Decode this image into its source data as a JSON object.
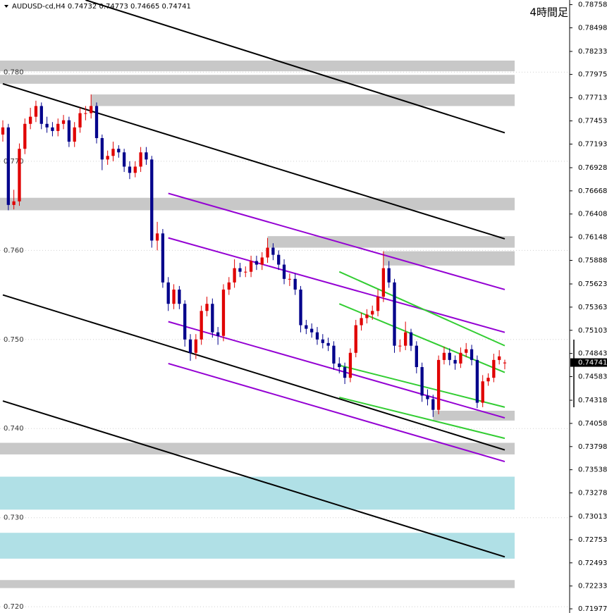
{
  "chart_data": {
    "type": "candlestick",
    "title": "AUDUSD-cd,H4  0.74732 0.74773 0.74665 0.74741",
    "annotation": "4時間足",
    "up_color": "#e00000",
    "down_color": "#00008b",
    "open": [
      0.773,
      0.7738,
      0.7651,
      0.7655,
      0.7714,
      0.7742,
      0.775,
      0.7762,
      0.7742,
      0.7738,
      0.7734,
      0.7742,
      0.7746,
      0.7722,
      0.7738,
      0.7754,
      0.7754,
      0.7762,
      0.7726,
      0.7702,
      0.7706,
      0.7714,
      0.771,
      0.7694,
      0.7687,
      0.7694,
      0.771,
      0.7702,
      0.7611,
      0.7619,
      0.7564,
      0.754,
      0.7556,
      0.754,
      0.75,
      0.7485,
      0.75,
      0.7532,
      0.754,
      0.7508,
      0.7504,
      0.7556,
      0.7564,
      0.758,
      0.7576,
      0.7576,
      0.7588,
      0.7584,
      0.7592,
      0.7603,
      0.7595,
      0.7584,
      0.7568,
      0.7568,
      0.7556,
      0.7516,
      0.7512,
      0.7508,
      0.75,
      0.7496,
      0.7493,
      0.7473,
      0.7469,
      0.7457,
      0.7485,
      0.7516,
      0.7524,
      0.7528,
      0.7532,
      0.7548,
      0.758,
      0.7564,
      0.7493,
      0.7493,
      0.7508,
      0.7493,
      0.7469,
      0.7437,
      0.7433,
      0.7421,
      0.7477,
      0.7485,
      0.7477,
      0.7473,
      0.7485,
      0.7489,
      0.7477,
      0.7429,
      0.7453,
      0.7457,
      0.7477,
      0.74732
    ],
    "high": [
      0.7746,
      0.7742,
      0.7668,
      0.772,
      0.7748,
      0.776,
      0.7768,
      0.7766,
      0.775,
      0.7744,
      0.7748,
      0.7752,
      0.775,
      0.7744,
      0.776,
      0.7762,
      0.7775,
      0.7766,
      0.773,
      0.7712,
      0.7722,
      0.7718,
      0.7714,
      0.77,
      0.77,
      0.7716,
      0.7716,
      0.7706,
      0.7632,
      0.7624,
      0.757,
      0.7562,
      0.756,
      0.7544,
      0.7506,
      0.7506,
      0.7538,
      0.7548,
      0.7546,
      0.7514,
      0.7562,
      0.757,
      0.759,
      0.7586,
      0.7582,
      0.7594,
      0.7594,
      0.7598,
      0.7614,
      0.7608,
      0.76,
      0.759,
      0.7574,
      0.7574,
      0.756,
      0.7522,
      0.7518,
      0.7514,
      0.7506,
      0.7502,
      0.7498,
      0.748,
      0.7474,
      0.749,
      0.7522,
      0.753,
      0.7534,
      0.7538,
      0.7556,
      0.7599,
      0.7588,
      0.7568,
      0.75,
      0.752,
      0.7512,
      0.7498,
      0.7474,
      0.7444,
      0.7438,
      0.7482,
      0.7492,
      0.749,
      0.7482,
      0.7491,
      0.7496,
      0.7494,
      0.7482,
      0.746,
      0.7462,
      0.7484,
      0.7488,
      0.74773
    ],
    "low": [
      0.7722,
      0.7645,
      0.7646,
      0.765,
      0.7708,
      0.7736,
      0.7744,
      0.7736,
      0.7732,
      0.7728,
      0.7728,
      0.7736,
      0.7716,
      0.7716,
      0.7732,
      0.7746,
      0.7748,
      0.772,
      0.769,
      0.7696,
      0.77,
      0.7704,
      0.7688,
      0.768,
      0.7682,
      0.7688,
      0.7696,
      0.7603,
      0.76,
      0.7558,
      0.7532,
      0.7534,
      0.7534,
      0.7492,
      0.7476,
      0.7478,
      0.7494,
      0.7526,
      0.7502,
      0.7494,
      0.7498,
      0.755,
      0.7558,
      0.757,
      0.757,
      0.757,
      0.7578,
      0.7578,
      0.7586,
      0.7589,
      0.7578,
      0.7562,
      0.756,
      0.755,
      0.7508,
      0.7506,
      0.7502,
      0.7494,
      0.749,
      0.7487,
      0.7466,
      0.7462,
      0.745,
      0.7452,
      0.748,
      0.751,
      0.7518,
      0.7522,
      0.7526,
      0.7542,
      0.7558,
      0.7485,
      0.7486,
      0.7488,
      0.7487,
      0.7462,
      0.743,
      0.7426,
      0.7413,
      0.7416,
      0.7472,
      0.7471,
      0.7466,
      0.7468,
      0.748,
      0.7471,
      0.7423,
      0.7424,
      0.7448,
      0.7452,
      0.7472,
      0.74665
    ],
    "close": [
      0.7738,
      0.7651,
      0.7655,
      0.7714,
      0.7742,
      0.775,
      0.7762,
      0.7742,
      0.7738,
      0.7734,
      0.7742,
      0.7746,
      0.7722,
      0.7738,
      0.7754,
      0.7754,
      0.7762,
      0.7726,
      0.7702,
      0.7706,
      0.7714,
      0.771,
      0.7694,
      0.7687,
      0.7694,
      0.771,
      0.7702,
      0.7611,
      0.7619,
      0.7564,
      0.754,
      0.7556,
      0.754,
      0.75,
      0.7485,
      0.75,
      0.7532,
      0.754,
      0.7508,
      0.7504,
      0.7556,
      0.7564,
      0.758,
      0.7576,
      0.7576,
      0.7588,
      0.7584,
      0.7592,
      0.7603,
      0.7595,
      0.7584,
      0.7568,
      0.7568,
      0.7556,
      0.7516,
      0.7512,
      0.7508,
      0.75,
      0.7496,
      0.7493,
      0.7473,
      0.7469,
      0.7457,
      0.7485,
      0.7516,
      0.7524,
      0.7528,
      0.7532,
      0.7548,
      0.758,
      0.7564,
      0.7493,
      0.7493,
      0.7508,
      0.7493,
      0.7469,
      0.7437,
      0.7433,
      0.7421,
      0.7477,
      0.7485,
      0.7477,
      0.7473,
      0.7485,
      0.7489,
      0.7477,
      0.7429,
      0.7453,
      0.7457,
      0.7477,
      0.7481,
      0.74741
    ],
    "ylim": [
      0.7193,
      0.7881
    ],
    "yticks": [
      0.78758,
      0.78498,
      0.78233,
      0.77975,
      0.77713,
      0.77453,
      0.77193,
      0.76928,
      0.76668,
      0.76408,
      0.76148,
      0.75888,
      0.75623,
      0.75363,
      0.75103,
      0.74843,
      0.74583,
      0.74318,
      0.74058,
      0.73798,
      0.73538,
      0.73278,
      0.73013,
      0.72753,
      0.72493,
      0.72233,
      0.71977
    ],
    "level_ticks": [
      {
        "value": 0.78,
        "label": "0.780"
      },
      {
        "value": 0.77,
        "label": "0.770"
      },
      {
        "value": 0.76,
        "label": "0.760"
      },
      {
        "value": 0.75,
        "label": "0.750"
      },
      {
        "value": 0.74,
        "label": "0.740"
      },
      {
        "value": 0.73,
        "label": "0.730"
      },
      {
        "value": 0.72,
        "label": "0.720"
      }
    ],
    "last_price": 0.74741,
    "zones": [
      {
        "from": 0.7801,
        "to": 0.7813,
        "start": 0,
        "color": "#c8c8c8"
      },
      {
        "from": 0.7787,
        "to": 0.7797,
        "start": 0,
        "color": "#c8c8c8"
      },
      {
        "from": 0.7762,
        "to": 0.7775,
        "start": 16,
        "color": "#c8c8c8"
      },
      {
        "from": 0.7645,
        "to": 0.7659,
        "start": 0,
        "color": "#c8c8c8"
      },
      {
        "from": 0.7603,
        "to": 0.7616,
        "start": 48,
        "color": "#c8c8c8"
      },
      {
        "from": 0.7583,
        "to": 0.7599,
        "start": 69,
        "color": "#c8c8c8"
      },
      {
        "from": 0.7409,
        "to": 0.742,
        "start": 78,
        "color": "#c8c8c8"
      },
      {
        "from": 0.7371,
        "to": 0.7384,
        "start": 0,
        "color": "#c8c8c8"
      },
      {
        "from": 0.7309,
        "to": 0.7346,
        "start": 0,
        "color": "#b0e0e6"
      },
      {
        "from": 0.7254,
        "to": 0.7283,
        "start": 0,
        "color": "#b0e0e6"
      },
      {
        "from": 0.7221,
        "to": 0.723,
        "start": 0,
        "color": "#c8c8c8"
      }
    ],
    "trendlines": [
      {
        "color": "#000000",
        "points": [
          [
            15,
            0.7881
          ],
          [
            91,
            0.7732
          ]
        ]
      },
      {
        "color": "#000000",
        "points": [
          [
            0,
            0.7787
          ],
          [
            91,
            0.7613
          ]
        ]
      },
      {
        "color": "#000000",
        "points": [
          [
            0,
            0.755
          ],
          [
            91,
            0.7376
          ]
        ]
      },
      {
        "color": "#000000",
        "points": [
          [
            0,
            0.7431
          ],
          [
            91,
            0.7256
          ]
        ]
      },
      {
        "color": "#9400d3",
        "points": [
          [
            30,
            0.7664
          ],
          [
            91,
            0.7556
          ]
        ]
      },
      {
        "color": "#9400d3",
        "points": [
          [
            30,
            0.7614
          ],
          [
            91,
            0.7508
          ]
        ]
      },
      {
        "color": "#9400d3",
        "points": [
          [
            30,
            0.752
          ],
          [
            91,
            0.7412
          ]
        ]
      },
      {
        "color": "#9400d3",
        "points": [
          [
            30,
            0.7473
          ],
          [
            91,
            0.7363
          ]
        ]
      },
      {
        "color": "#32cd32",
        "points": [
          [
            61,
            0.7576
          ],
          [
            91,
            0.7493
          ]
        ]
      },
      {
        "color": "#32cd32",
        "points": [
          [
            61,
            0.754
          ],
          [
            91,
            0.7463
          ]
        ]
      },
      {
        "color": "#32cd32",
        "points": [
          [
            61,
            0.7471
          ],
          [
            91,
            0.7424
          ]
        ]
      },
      {
        "color": "#32cd32",
        "points": [
          [
            61,
            0.7435
          ],
          [
            91,
            0.7389
          ]
        ]
      }
    ]
  }
}
